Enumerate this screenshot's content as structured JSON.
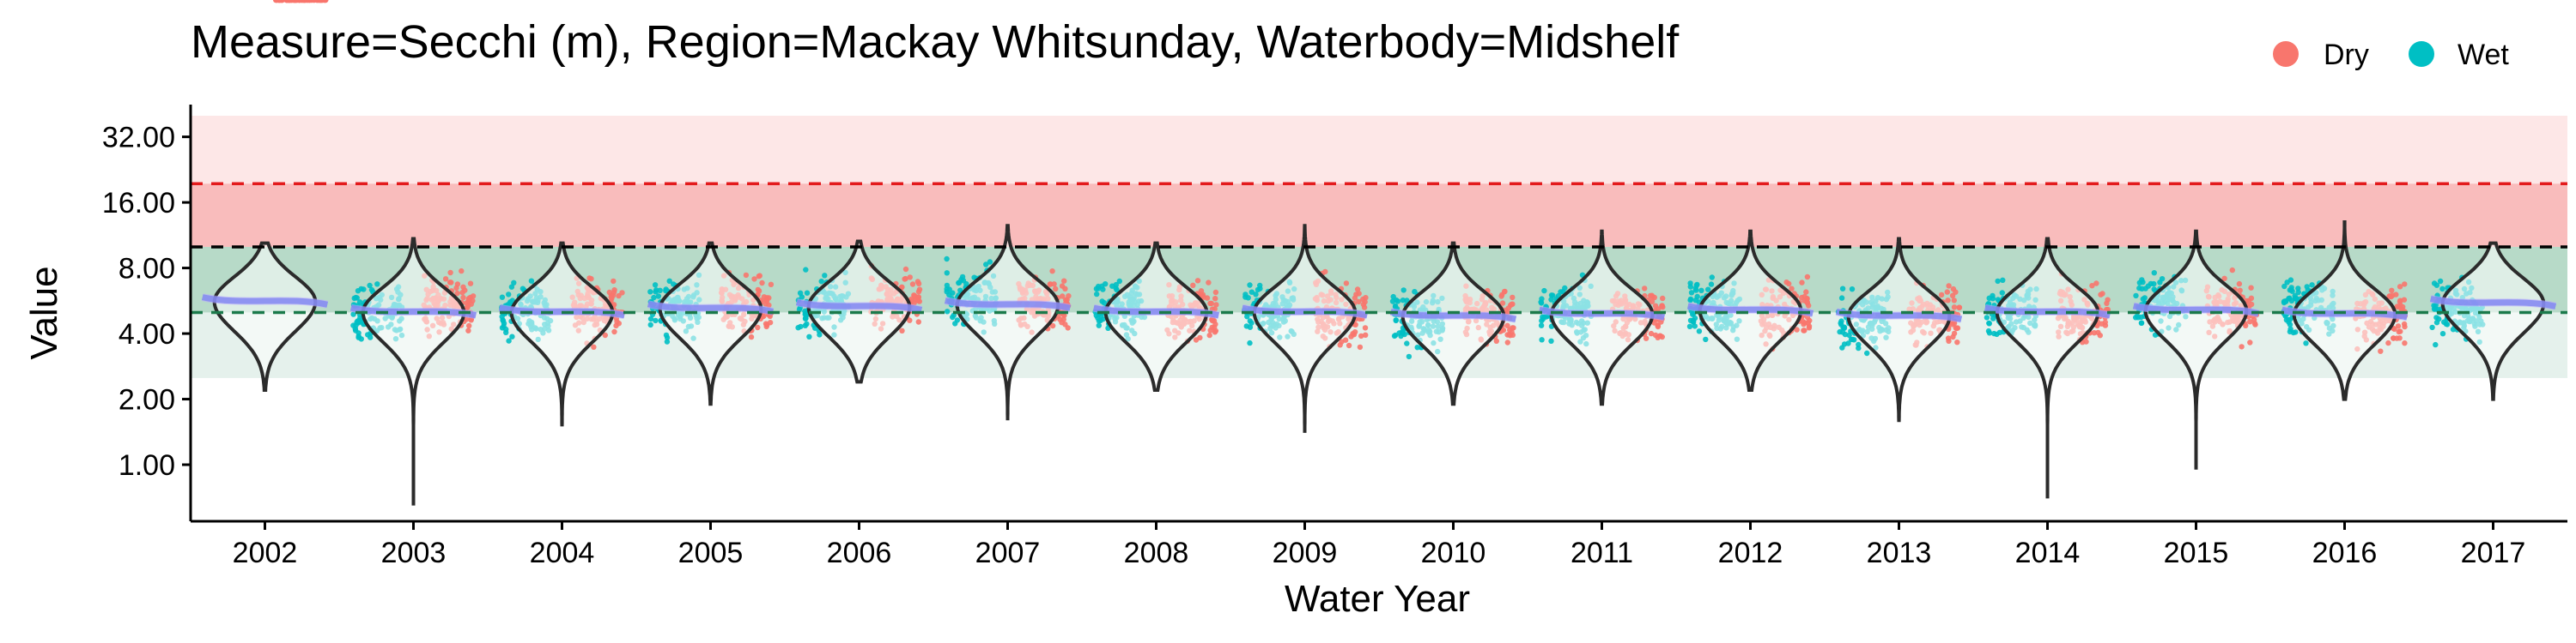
{
  "chart_data": {
    "type": "scatter",
    "title": "Measure=Secchi (m), Region=Mackay Whitsunday, Waterbody=Midshelf",
    "xlabel": "Water Year",
    "ylabel": "Value",
    "y_scale": "log2",
    "ylim": [
      0.55,
      45
    ],
    "y_ticks": [
      1,
      2,
      4,
      8,
      16,
      32
    ],
    "y_tick_labels": [
      "1.00",
      "2.00",
      "4.00",
      "8.00",
      "16.00",
      "32.00"
    ],
    "categories": [
      "2002",
      "2003",
      "2004",
      "2005",
      "2006",
      "2007",
      "2008",
      "2009",
      "2010",
      "2011",
      "2012",
      "2013",
      "2014",
      "2015",
      "2016",
      "2017"
    ],
    "legend": {
      "position": "top-right",
      "items": [
        {
          "label": "Dry",
          "color": "#F8766D"
        },
        {
          "label": "Wet",
          "color": "#00BFC4"
        }
      ]
    },
    "reference_lines": [
      {
        "value": 19.5,
        "color": "#e31a1c",
        "style": "dashed"
      },
      {
        "value": 10.0,
        "color": "#000000",
        "style": "dashed"
      },
      {
        "value": 5.0,
        "color": "#1b7a4b",
        "style": "dashed"
      }
    ],
    "bands": [
      {
        "from": 10.0,
        "to": 40.0,
        "color": "#fde7e7"
      },
      {
        "from": 10.0,
        "to": 19.5,
        "color": "#f9bcbc"
      },
      {
        "from": 2.5,
        "to": 10.0,
        "color": "#e5f1ec"
      },
      {
        "from": 5.0,
        "to": 10.0,
        "color": "#b7dac8"
      }
    ],
    "series": [
      {
        "name": "Dry",
        "color": "#F8766D",
        "medians": [
          5.6,
          5.4,
          5.3,
          5.4,
          5.5,
          5.5,
          5.0,
          5.0,
          4.8,
          4.9,
          5.1,
          4.9,
          4.9,
          5.0,
          4.8,
          null
        ],
        "lower": [
          null,
          2.6,
          2.4,
          2.6,
          2.5,
          2.6,
          2.2,
          2.2,
          2.1,
          2.2,
          2.4,
          2.3,
          2.3,
          1.9,
          2.3,
          null
        ],
        "upper": [
          null,
          11.0,
          10.5,
          10.5,
          11.5,
          11.0,
          10.0,
          10.5,
          10.0,
          10.5,
          11.0,
          10.5,
          10.5,
          11.5,
          11.0,
          null
        ]
      },
      {
        "name": "Wet",
        "color": "#00BFC4",
        "medians": [
          null,
          5.0,
          5.0,
          5.3,
          5.5,
          5.8,
          5.4,
          5.1,
          4.6,
          5.0,
          5.2,
          4.7,
          5.0,
          5.6,
          5.2,
          5.2
        ],
        "lower": [
          null,
          2.3,
          2.6,
          2.4,
          2.5,
          2.4,
          2.3,
          2.2,
          2.0,
          2.1,
          2.4,
          2.1,
          2.2,
          2.3,
          2.4,
          3.3
        ],
        "upper": [
          null,
          11.5,
          10.5,
          10.5,
          12.0,
          11.5,
          10.0,
          11.5,
          10.5,
          11.0,
          11.5,
          10.5,
          10.5,
          11.8,
          11.0,
          9.0
        ]
      }
    ],
    "violins": [
      {
        "year": "2002",
        "median": 5.6,
        "min": 2.2,
        "max": 10.4
      },
      {
        "year": "2003",
        "median": 5.0,
        "min": 0.65,
        "max": 10.9
      },
      {
        "year": "2004",
        "median": 5.0,
        "min": 1.5,
        "max": 10.4
      },
      {
        "year": "2005",
        "median": 5.2,
        "min": 1.9,
        "max": 10.4
      },
      {
        "year": "2006",
        "median": 5.3,
        "min": 2.4,
        "max": 10.6
      },
      {
        "year": "2007",
        "median": 5.4,
        "min": 1.6,
        "max": 12.5
      },
      {
        "year": "2008",
        "median": 5.0,
        "min": 2.2,
        "max": 10.4
      },
      {
        "year": "2009",
        "median": 5.0,
        "min": 1.4,
        "max": 12.5
      },
      {
        "year": "2010",
        "median": 4.8,
        "min": 1.9,
        "max": 10.4
      },
      {
        "year": "2011",
        "median": 4.9,
        "min": 1.9,
        "max": 11.8
      },
      {
        "year": "2012",
        "median": 5.1,
        "min": 2.2,
        "max": 11.8
      },
      {
        "year": "2013",
        "median": 4.8,
        "min": 1.6,
        "max": 10.9
      },
      {
        "year": "2014",
        "median": 5.0,
        "min": 0.7,
        "max": 10.9
      },
      {
        "year": "2015",
        "median": 5.1,
        "min": 0.95,
        "max": 11.8
      },
      {
        "year": "2016",
        "median": 4.9,
        "min": 2.0,
        "max": 13.0
      },
      {
        "year": "2017",
        "median": 5.5,
        "min": 2.0,
        "max": 10.4
      }
    ],
    "grid": false
  }
}
